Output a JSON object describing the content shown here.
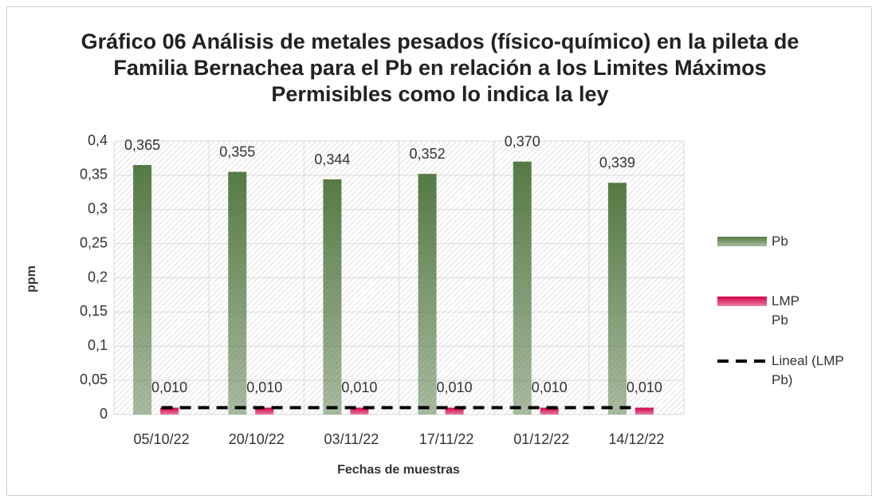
{
  "chart_data": {
    "type": "bar",
    "title": "Gráfico 06 Análisis de metales pesados (físico-químico) en la pileta de Familia Bernachea para el Pb en relación a los Limites Máximos Permisibles como lo indica la ley",
    "xlabel": "Fechas de muestras",
    "ylabel": "ppm",
    "categories": [
      "05/10/22",
      "20/10/22",
      "03/11/22",
      "17/11/22",
      "01/12/22",
      "14/12/22"
    ],
    "series": [
      {
        "name": "Pb",
        "type": "bar",
        "color": "#557a44",
        "values": [
          0.365,
          0.355,
          0.344,
          0.352,
          0.37,
          0.339
        ],
        "value_labels": [
          "0,365",
          "0,355",
          "0,344",
          "0,352",
          "0,370",
          "0,339"
        ]
      },
      {
        "name": "LMP Pb",
        "type": "bar",
        "color": "#d4004a",
        "values": [
          0.01,
          0.01,
          0.01,
          0.01,
          0.01,
          0.01
        ],
        "value_labels": [
          "0,010",
          "0,010",
          "0,010",
          "0,010",
          "0,010",
          "0,010"
        ]
      },
      {
        "name": "Lineal (LMP Pb)",
        "type": "line",
        "color": "#000000",
        "dashed": true,
        "values": [
          0.01,
          0.01,
          0.01,
          0.01,
          0.01,
          0.01
        ]
      }
    ],
    "ylim": [
      0,
      0.4
    ],
    "yticks": [
      0,
      {
        "value": 0.05,
        "label": "0,05"
      },
      {
        "value": 0.1,
        "label": "0,1"
      },
      {
        "value": 0.15,
        "label": "0,15"
      },
      {
        "value": 0.2,
        "label": "0,2"
      },
      {
        "value": 0.25,
        "label": "0,25"
      },
      {
        "value": 0.3,
        "label": "0,3"
      },
      {
        "value": 0.35,
        "label": "0,35"
      },
      {
        "value": 0.4,
        "label": "0,4"
      }
    ],
    "grid": true,
    "legend": "right"
  }
}
